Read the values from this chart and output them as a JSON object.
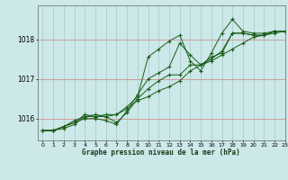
{
  "title": "Graphe pression niveau de la mer (hPa)",
  "background_color": "#cce8e8",
  "grid_color_h": "#d08080",
  "grid_color_v": "#a8c8c8",
  "line_color": "#1a5c1a",
  "xlim": [
    -0.5,
    23
  ],
  "ylim": [
    1015.45,
    1018.85
  ],
  "yticks": [
    1016,
    1017,
    1018
  ],
  "xticks": [
    0,
    1,
    2,
    3,
    4,
    5,
    6,
    7,
    8,
    9,
    10,
    11,
    12,
    13,
    14,
    15,
    16,
    17,
    18,
    19,
    20,
    21,
    22,
    23
  ],
  "series": [
    [
      1015.7,
      1015.7,
      1015.8,
      1015.9,
      1016.0,
      1016.0,
      1015.95,
      1015.85,
      1016.2,
      1016.6,
      1017.0,
      1017.15,
      1017.3,
      1017.9,
      1017.6,
      1017.35,
      1017.5,
      1017.7,
      1018.15,
      1018.15,
      1018.1,
      1018.1,
      1018.2,
      1018.2
    ],
    [
      1015.7,
      1015.7,
      1015.8,
      1015.9,
      1016.1,
      1016.05,
      1016.05,
      1016.1,
      1016.3,
      1016.55,
      1017.55,
      1017.75,
      1017.95,
      1018.1,
      1017.45,
      1017.2,
      1017.65,
      1018.15,
      1018.5,
      1018.2,
      1018.15,
      1018.15,
      1018.2,
      1018.2
    ],
    [
      1015.7,
      1015.7,
      1015.8,
      1015.95,
      1016.05,
      1016.1,
      1016.05,
      1015.9,
      1016.15,
      1016.5,
      1016.75,
      1016.95,
      1017.1,
      1017.1,
      1017.35,
      1017.35,
      1017.55,
      1017.65,
      1018.15,
      1018.15,
      1018.1,
      1018.1,
      1018.2,
      1018.2
    ],
    [
      1015.7,
      1015.7,
      1015.75,
      1015.85,
      1016.05,
      1016.05,
      1016.1,
      1016.1,
      1016.25,
      1016.45,
      1016.55,
      1016.7,
      1016.8,
      1016.95,
      1017.2,
      1017.35,
      1017.45,
      1017.6,
      1017.75,
      1017.9,
      1018.05,
      1018.1,
      1018.15,
      1018.2
    ]
  ],
  "figsize": [
    3.2,
    2.0
  ],
  "dpi": 100
}
